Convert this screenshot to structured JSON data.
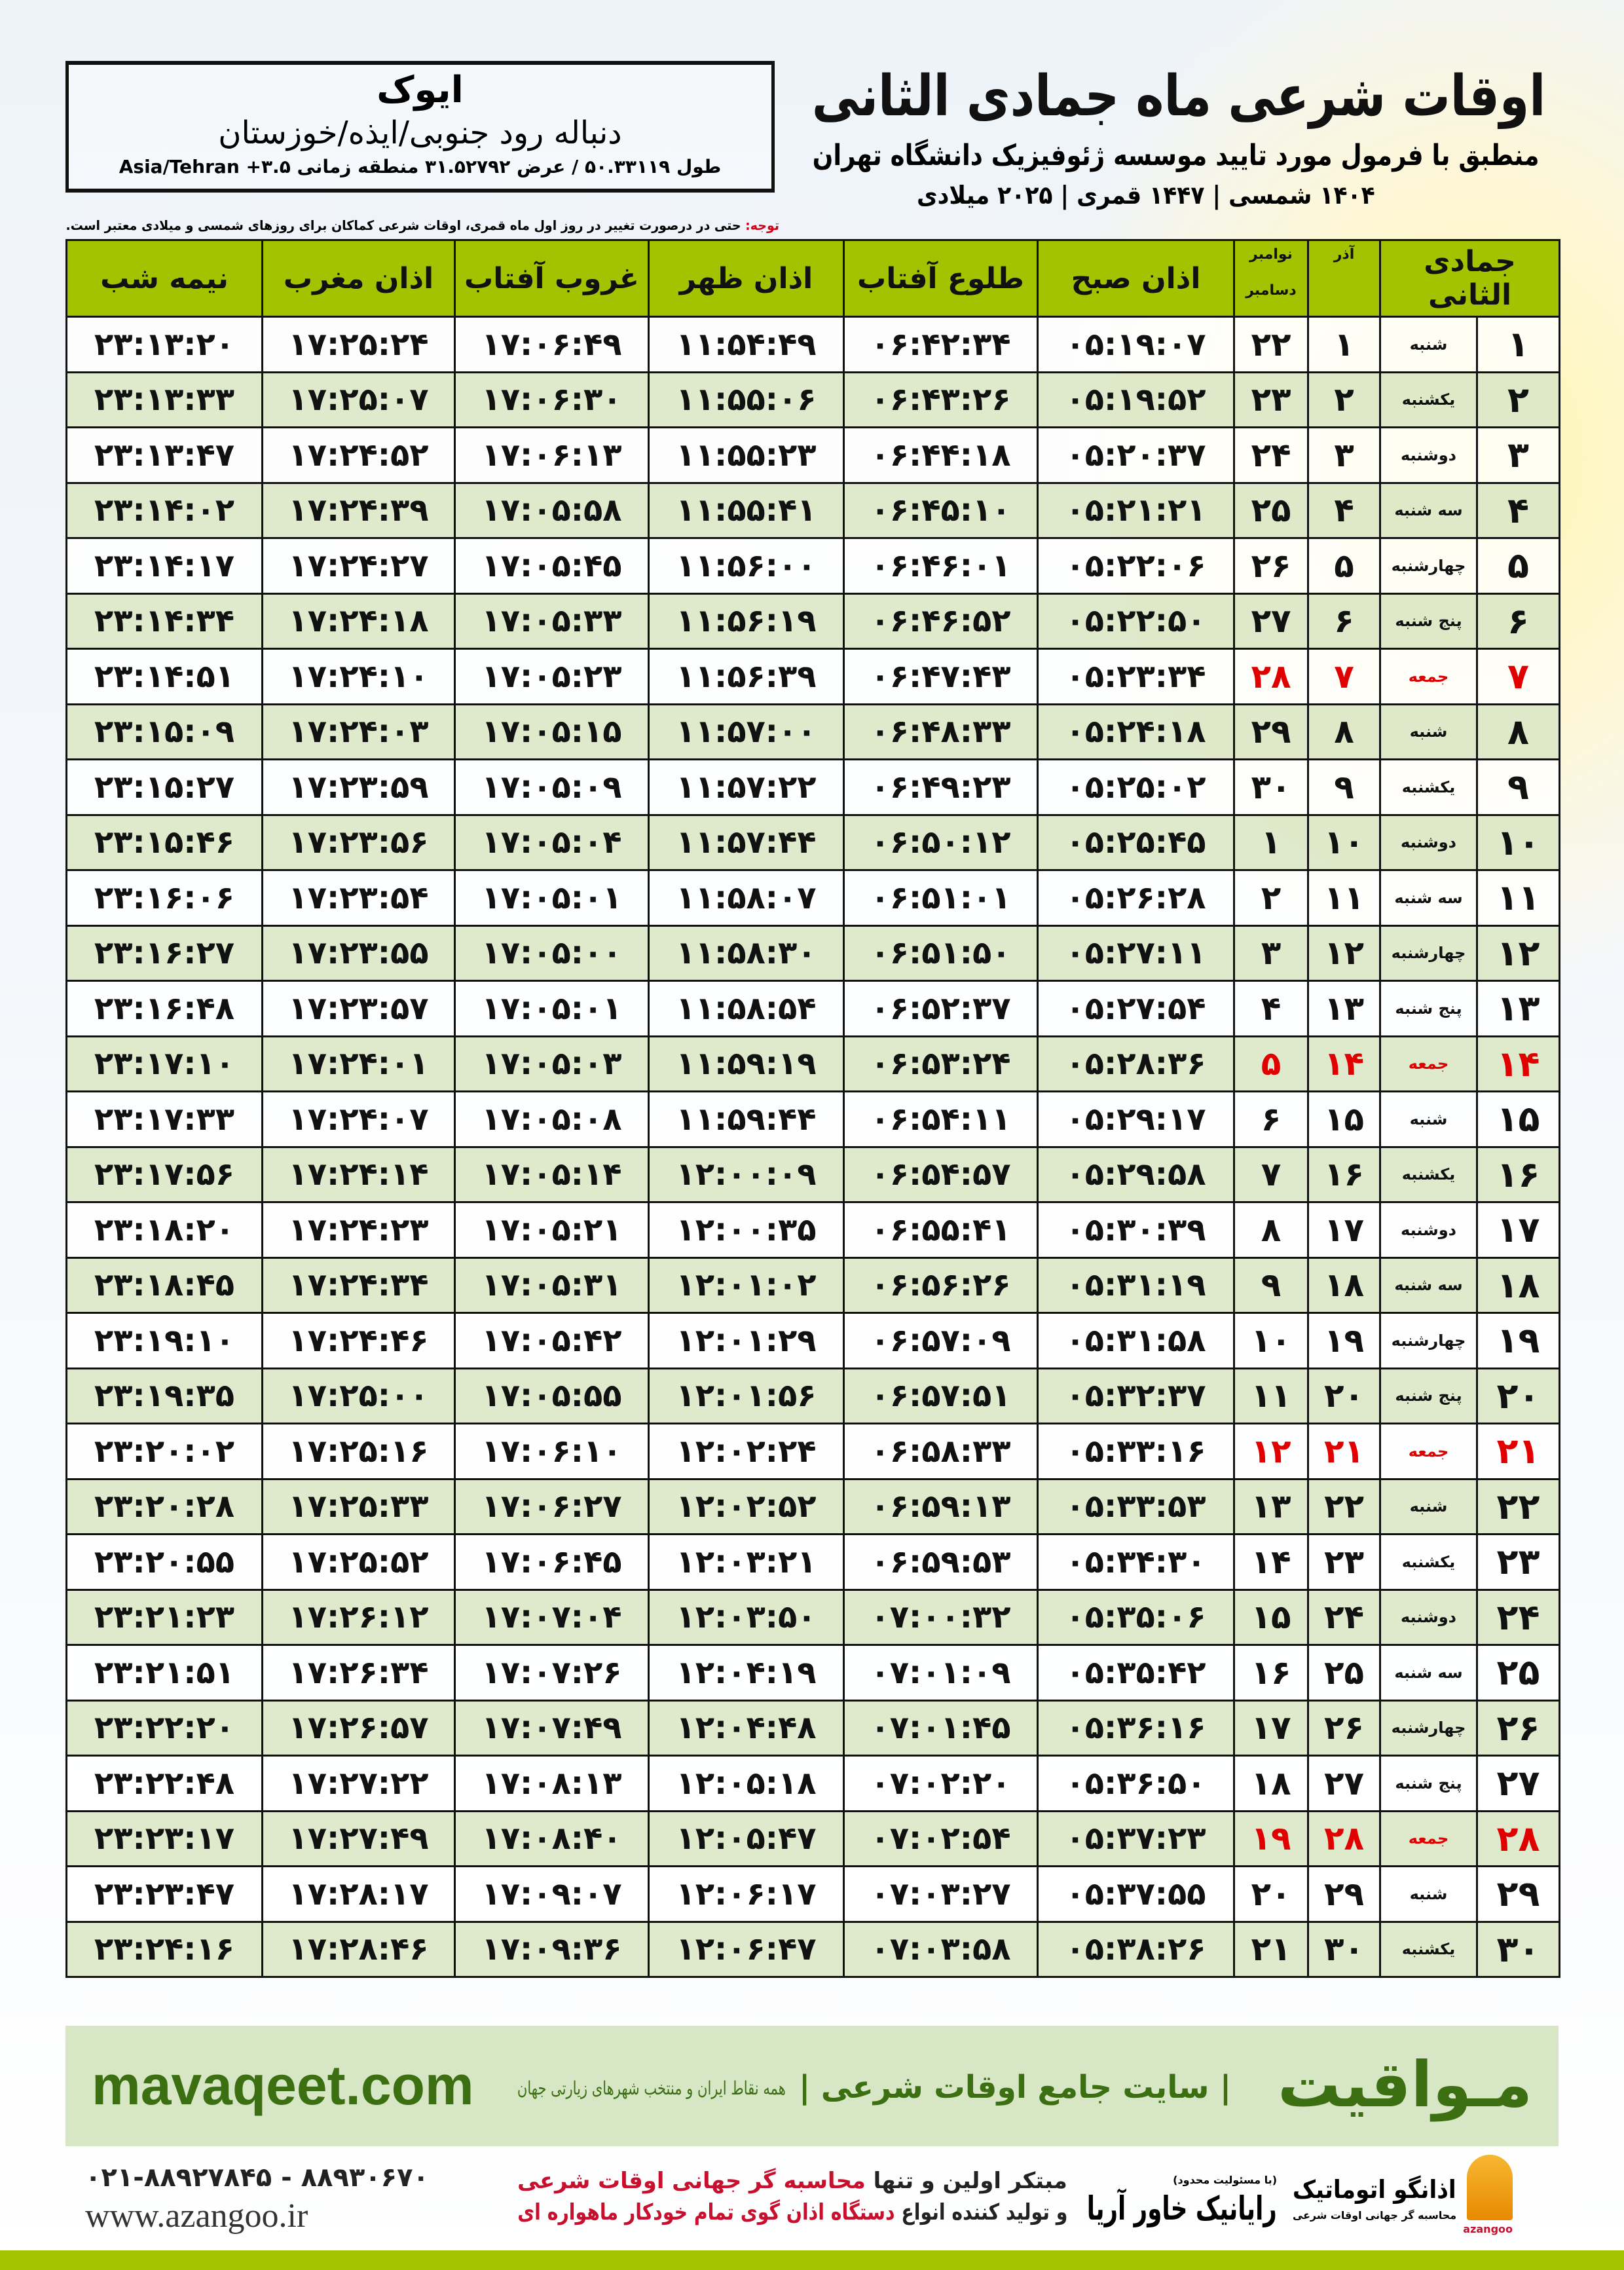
{
  "header": {
    "city": "ایوک",
    "region": "دنباله رود جنوبی/ایذه/خوزستان",
    "coords": "طول ۵۰.۳۳۱۱۹ / عرض ۳۱.۵۲۷۹۲ منطقه زمانی ۳.۵+ Asia/Tehran",
    "title": "اوقات شرعی ماه جمادی الثانی",
    "subtitle": "منطبق با فرمول مورد تایید موسسه ژئوفیزیک دانشگاه تهران",
    "dateline": "۱۴۰۴ شمسی | ۱۴۴۷ قمری | ۲۰۲۵ میلادی",
    "note_label": "توجه:",
    "note": " حتی در درصورت تغییر در روز اول ماه قمری، اوقات شرعی کماکان برای روزهای شمسی و میلادی معتبر است."
  },
  "table": {
    "headers": {
      "month": "جمادی الثانی",
      "azar": "آذر",
      "greg_top": "نوامبر",
      "greg_bottom": "دسامبر",
      "fajr": "اذان صبح",
      "sunrise": "طلوع آفتاب",
      "dhuhr": "اذان ظهر",
      "sunset": "غروب آفتاب",
      "maghrib": "اذان مغرب",
      "midnight": "نیمه شب"
    },
    "friday_color": "#e00000",
    "header_color": "#a3c200",
    "rows": [
      [
        "۱",
        "شنبه",
        "۱",
        "۲۲",
        "۰۵:۱۹:۰۷",
        "۰۶:۴۲:۳۴",
        "۱۱:۵۴:۴۹",
        "۱۷:۰۶:۴۹",
        "۱۷:۲۵:۲۴",
        "۲۳:۱۳:۲۰"
      ],
      [
        "۲",
        "یکشنبه",
        "۲",
        "۲۳",
        "۰۵:۱۹:۵۲",
        "۰۶:۴۳:۲۶",
        "۱۱:۵۵:۰۶",
        "۱۷:۰۶:۳۰",
        "۱۷:۲۵:۰۷",
        "۲۳:۱۳:۳۳"
      ],
      [
        "۳",
        "دوشنبه",
        "۳",
        "۲۴",
        "۰۵:۲۰:۳۷",
        "۰۶:۴۴:۱۸",
        "۱۱:۵۵:۲۳",
        "۱۷:۰۶:۱۳",
        "۱۷:۲۴:۵۲",
        "۲۳:۱۳:۴۷"
      ],
      [
        "۴",
        "سه شنبه",
        "۴",
        "۲۵",
        "۰۵:۲۱:۲۱",
        "۰۶:۴۵:۱۰",
        "۱۱:۵۵:۴۱",
        "۱۷:۰۵:۵۸",
        "۱۷:۲۴:۳۹",
        "۲۳:۱۴:۰۲"
      ],
      [
        "۵",
        "چهارشنبه",
        "۵",
        "۲۶",
        "۰۵:۲۲:۰۶",
        "۰۶:۴۶:۰۱",
        "۱۱:۵۶:۰۰",
        "۱۷:۰۵:۴۵",
        "۱۷:۲۴:۲۷",
        "۲۳:۱۴:۱۷"
      ],
      [
        "۶",
        "پنج شنبه",
        "۶",
        "۲۷",
        "۰۵:۲۲:۵۰",
        "۰۶:۴۶:۵۲",
        "۱۱:۵۶:۱۹",
        "۱۷:۰۵:۳۳",
        "۱۷:۲۴:۱۸",
        "۲۳:۱۴:۳۴"
      ],
      [
        "۷",
        "جمعه",
        "۷",
        "۲۸",
        "۰۵:۲۳:۳۴",
        "۰۶:۴۷:۴۳",
        "۱۱:۵۶:۳۹",
        "۱۷:۰۵:۲۳",
        "۱۷:۲۴:۱۰",
        "۲۳:۱۴:۵۱"
      ],
      [
        "۸",
        "شنبه",
        "۸",
        "۲۹",
        "۰۵:۲۴:۱۸",
        "۰۶:۴۸:۳۳",
        "۱۱:۵۷:۰۰",
        "۱۷:۰۵:۱۵",
        "۱۷:۲۴:۰۳",
        "۲۳:۱۵:۰۹"
      ],
      [
        "۹",
        "یکشنبه",
        "۹",
        "۳۰",
        "۰۵:۲۵:۰۲",
        "۰۶:۴۹:۲۳",
        "۱۱:۵۷:۲۲",
        "۱۷:۰۵:۰۹",
        "۱۷:۲۳:۵۹",
        "۲۳:۱۵:۲۷"
      ],
      [
        "۱۰",
        "دوشنبه",
        "۱۰",
        "۱",
        "۰۵:۲۵:۴۵",
        "۰۶:۵۰:۱۲",
        "۱۱:۵۷:۴۴",
        "۱۷:۰۵:۰۴",
        "۱۷:۲۳:۵۶",
        "۲۳:۱۵:۴۶"
      ],
      [
        "۱۱",
        "سه شنبه",
        "۱۱",
        "۲",
        "۰۵:۲۶:۲۸",
        "۰۶:۵۱:۰۱",
        "۱۱:۵۸:۰۷",
        "۱۷:۰۵:۰۱",
        "۱۷:۲۳:۵۴",
        "۲۳:۱۶:۰۶"
      ],
      [
        "۱۲",
        "چهارشنبه",
        "۱۲",
        "۳",
        "۰۵:۲۷:۱۱",
        "۰۶:۵۱:۵۰",
        "۱۱:۵۸:۳۰",
        "۱۷:۰۵:۰۰",
        "۱۷:۲۳:۵۵",
        "۲۳:۱۶:۲۷"
      ],
      [
        "۱۳",
        "پنج شنبه",
        "۱۳",
        "۴",
        "۰۵:۲۷:۵۴",
        "۰۶:۵۲:۳۷",
        "۱۱:۵۸:۵۴",
        "۱۷:۰۵:۰۱",
        "۱۷:۲۳:۵۷",
        "۲۳:۱۶:۴۸"
      ],
      [
        "۱۴",
        "جمعه",
        "۱۴",
        "۵",
        "۰۵:۲۸:۳۶",
        "۰۶:۵۳:۲۴",
        "۱۱:۵۹:۱۹",
        "۱۷:۰۵:۰۳",
        "۱۷:۲۴:۰۱",
        "۲۳:۱۷:۱۰"
      ],
      [
        "۱۵",
        "شنبه",
        "۱۵",
        "۶",
        "۰۵:۲۹:۱۷",
        "۰۶:۵۴:۱۱",
        "۱۱:۵۹:۴۴",
        "۱۷:۰۵:۰۸",
        "۱۷:۲۴:۰۷",
        "۲۳:۱۷:۳۳"
      ],
      [
        "۱۶",
        "یکشنبه",
        "۱۶",
        "۷",
        "۰۵:۲۹:۵۸",
        "۰۶:۵۴:۵۷",
        "۱۲:۰۰:۰۹",
        "۱۷:۰۵:۱۴",
        "۱۷:۲۴:۱۴",
        "۲۳:۱۷:۵۶"
      ],
      [
        "۱۷",
        "دوشنبه",
        "۱۷",
        "۸",
        "۰۵:۳۰:۳۹",
        "۰۶:۵۵:۴۱",
        "۱۲:۰۰:۳۵",
        "۱۷:۰۵:۲۱",
        "۱۷:۲۴:۲۳",
        "۲۳:۱۸:۲۰"
      ],
      [
        "۱۸",
        "سه شنبه",
        "۱۸",
        "۹",
        "۰۵:۳۱:۱۹",
        "۰۶:۵۶:۲۶",
        "۱۲:۰۱:۰۲",
        "۱۷:۰۵:۳۱",
        "۱۷:۲۴:۳۴",
        "۲۳:۱۸:۴۵"
      ],
      [
        "۱۹",
        "چهارشنبه",
        "۱۹",
        "۱۰",
        "۰۵:۳۱:۵۸",
        "۰۶:۵۷:۰۹",
        "۱۲:۰۱:۲۹",
        "۱۷:۰۵:۴۲",
        "۱۷:۲۴:۴۶",
        "۲۳:۱۹:۱۰"
      ],
      [
        "۲۰",
        "پنج شنبه",
        "۲۰",
        "۱۱",
        "۰۵:۳۲:۳۷",
        "۰۶:۵۷:۵۱",
        "۱۲:۰۱:۵۶",
        "۱۷:۰۵:۵۵",
        "۱۷:۲۵:۰۰",
        "۲۳:۱۹:۳۵"
      ],
      [
        "۲۱",
        "جمعه",
        "۲۱",
        "۱۲",
        "۰۵:۳۳:۱۶",
        "۰۶:۵۸:۳۳",
        "۱۲:۰۲:۲۴",
        "۱۷:۰۶:۱۰",
        "۱۷:۲۵:۱۶",
        "۲۳:۲۰:۰۲"
      ],
      [
        "۲۲",
        "شنبه",
        "۲۲",
        "۱۳",
        "۰۵:۳۳:۵۳",
        "۰۶:۵۹:۱۳",
        "۱۲:۰۲:۵۲",
        "۱۷:۰۶:۲۷",
        "۱۷:۲۵:۳۳",
        "۲۳:۲۰:۲۸"
      ],
      [
        "۲۳",
        "یکشنبه",
        "۲۳",
        "۱۴",
        "۰۵:۳۴:۳۰",
        "۰۶:۵۹:۵۳",
        "۱۲:۰۳:۲۱",
        "۱۷:۰۶:۴۵",
        "۱۷:۲۵:۵۲",
        "۲۳:۲۰:۵۵"
      ],
      [
        "۲۴",
        "دوشنبه",
        "۲۴",
        "۱۵",
        "۰۵:۳۵:۰۶",
        "۰۷:۰۰:۳۲",
        "۱۲:۰۳:۵۰",
        "۱۷:۰۷:۰۴",
        "۱۷:۲۶:۱۲",
        "۲۳:۲۱:۲۳"
      ],
      [
        "۲۵",
        "سه شنبه",
        "۲۵",
        "۱۶",
        "۰۵:۳۵:۴۲",
        "۰۷:۰۱:۰۹",
        "۱۲:۰۴:۱۹",
        "۱۷:۰۷:۲۶",
        "۱۷:۲۶:۳۴",
        "۲۳:۲۱:۵۱"
      ],
      [
        "۲۶",
        "چهارشنبه",
        "۲۶",
        "۱۷",
        "۰۵:۳۶:۱۶",
        "۰۷:۰۱:۴۵",
        "۱۲:۰۴:۴۸",
        "۱۷:۰۷:۴۹",
        "۱۷:۲۶:۵۷",
        "۲۳:۲۲:۲۰"
      ],
      [
        "۲۷",
        "پنج شنبه",
        "۲۷",
        "۱۸",
        "۰۵:۳۶:۵۰",
        "۰۷:۰۲:۲۰",
        "۱۲:۰۵:۱۸",
        "۱۷:۰۸:۱۳",
        "۱۷:۲۷:۲۲",
        "۲۳:۲۲:۴۸"
      ],
      [
        "۲۸",
        "جمعه",
        "۲۸",
        "۱۹",
        "۰۵:۳۷:۲۳",
        "۰۷:۰۲:۵۴",
        "۱۲:۰۵:۴۷",
        "۱۷:۰۸:۴۰",
        "۱۷:۲۷:۴۹",
        "۲۳:۲۳:۱۷"
      ],
      [
        "۲۹",
        "شنبه",
        "۲۹",
        "۲۰",
        "۰۵:۳۷:۵۵",
        "۰۷:۰۳:۲۷",
        "۱۲:۰۶:۱۷",
        "۱۷:۰۹:۰۷",
        "۱۷:۲۸:۱۷",
        "۲۳:۲۳:۴۷"
      ],
      [
        "۳۰",
        "یکشنبه",
        "۳۰",
        "۲۱",
        "۰۵:۳۸:۲۶",
        "۰۷:۰۳:۵۸",
        "۱۲:۰۶:۴۷",
        "۱۷:۰۹:۳۶",
        "۱۷:۲۸:۴۶",
        "۲۳:۲۴:۱۶"
      ]
    ]
  },
  "footer": {
    "mavaqeet_logo": "مـواقیت",
    "mavaqeet_tagline": "| سایت جامع اوقات شرعی |",
    "mavaqeet_sub": "همه نقاط ایران و منتخب شهرهای زیارتی جهان",
    "mavaqeet_url": "mavaqeet.com",
    "phone": "۰۲۱-۸۸۹۲۷۸۴۵ - ۸۸۹۳۰۶۷۰",
    "azangoo_url": "www.azangoo.ir",
    "promo_1a": "مبتکر اولین و تنها ",
    "promo_1b": "محاسبه گر جهانی اوقات شرعی",
    "promo_2a": "و تولید کننده انواع ",
    "promo_2b": "دستگاه اذان گوی تمام خودکار ماهواره ای",
    "rayanik_small": "(با مسئولیت محدود)",
    "rayanik": "رایانیک خاور آریا",
    "azangoo_logo": "اذانگو اتوماتیک",
    "azangoo_logo_sub": "محاسبه گر جهانی اوقات شرعی",
    "azangoo_en": "azangoo",
    "accent_green": "#3c6e12",
    "bar_color": "#a4c400"
  }
}
